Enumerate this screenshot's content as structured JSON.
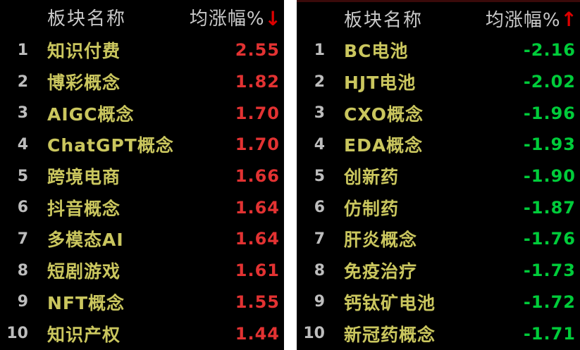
{
  "colors": {
    "panel_bg": "#000000",
    "gap_bg": "#ffffff",
    "header_text": "#c9c9c9",
    "rank_text": "#bdbdbd",
    "name_text": "#cac65e",
    "up": "#e23232",
    "down": "#00cc3a",
    "arrow": "#dd0000",
    "top_border": "#3a0a0a"
  },
  "left_panel": {
    "header": {
      "name_col": "板块名称",
      "value_col": "均涨幅%",
      "sort_arrow": "↓"
    },
    "rows": [
      {
        "rank": "1",
        "name": "知识付费",
        "value": "2.55"
      },
      {
        "rank": "2",
        "name": "博彩概念",
        "value": "1.82"
      },
      {
        "rank": "3",
        "name": "AIGC概念",
        "value": "1.70"
      },
      {
        "rank": "4",
        "name": "ChatGPT概念",
        "value": "1.70"
      },
      {
        "rank": "5",
        "name": "跨境电商",
        "value": "1.66"
      },
      {
        "rank": "6",
        "name": "抖音概念",
        "value": "1.64"
      },
      {
        "rank": "7",
        "name": "多模态AI",
        "value": "1.64"
      },
      {
        "rank": "8",
        "name": "短剧游戏",
        "value": "1.61"
      },
      {
        "rank": "9",
        "name": "NFT概念",
        "value": "1.55"
      },
      {
        "rank": "10",
        "name": "知识产权",
        "value": "1.44"
      }
    ]
  },
  "right_panel": {
    "header": {
      "name_col": "板块名称",
      "value_col": "均涨幅%",
      "sort_arrow": "↑"
    },
    "rows": [
      {
        "rank": "1",
        "name": "BC电池",
        "value": "-2.16"
      },
      {
        "rank": "2",
        "name": "HJT电池",
        "value": "-2.02"
      },
      {
        "rank": "3",
        "name": "CXO概念",
        "value": "-1.96"
      },
      {
        "rank": "4",
        "name": "EDA概念",
        "value": "-1.93"
      },
      {
        "rank": "5",
        "name": "创新药",
        "value": "-1.90"
      },
      {
        "rank": "6",
        "name": "仿制药",
        "value": "-1.87"
      },
      {
        "rank": "7",
        "name": "肝炎概念",
        "value": "-1.76"
      },
      {
        "rank": "8",
        "name": "免疫治疗",
        "value": "-1.73"
      },
      {
        "rank": "9",
        "name": "钙钛矿电池",
        "value": "-1.72"
      },
      {
        "rank": "10",
        "name": "新冠药概念",
        "value": "-1.71"
      }
    ]
  }
}
